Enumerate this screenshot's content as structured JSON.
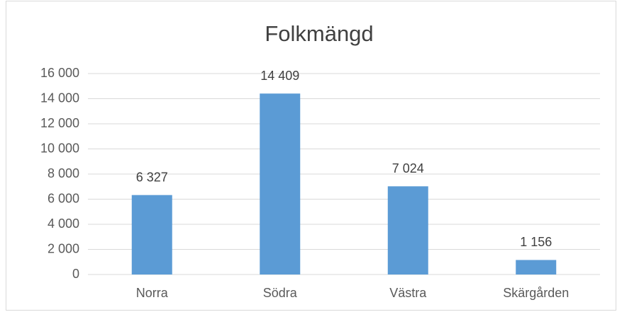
{
  "chart_data": {
    "type": "bar",
    "title": "Folkmängd",
    "categories": [
      "Norra",
      "Södra",
      "Västra",
      "Skärgården"
    ],
    "values": [
      6327,
      14409,
      7024,
      1156
    ],
    "value_labels": [
      "6 327",
      "14 409",
      "7 024",
      "1 156"
    ],
    "color": "#5b9bd5",
    "ylim": [
      0,
      16000
    ],
    "yticks": [
      0,
      {
        "value": 2000,
        "label": "2 000"
      },
      {
        "value": 4000,
        "label": "4 000"
      },
      {
        "value": 6000,
        "label": "6 000"
      },
      {
        "value": 8000,
        "label": "8 000"
      },
      {
        "value": 10000,
        "label": "10 000"
      },
      {
        "value": 12000,
        "label": "12 000"
      },
      {
        "value": 14000,
        "label": "14 000"
      },
      {
        "value": 16000,
        "label": "16 000"
      }
    ],
    "grid": true
  }
}
